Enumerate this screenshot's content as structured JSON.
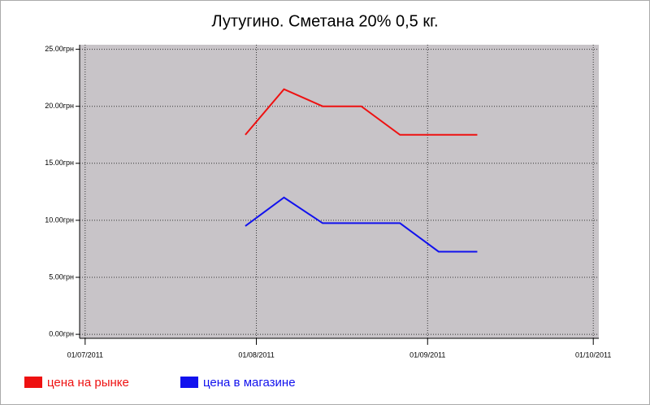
{
  "chart_data": {
    "type": "line",
    "title": "Лутугино. Сметана 20%  0,5 кг.",
    "x": [
      "2011-07-30",
      "2011-08-06",
      "2011-08-13",
      "2011-08-20",
      "2011-08-27",
      "2011-09-03",
      "2011-09-10"
    ],
    "series": [
      {
        "name": "цена на рынке",
        "color": "#ee1111",
        "values": [
          17.5,
          21.5,
          20,
          20,
          17.5,
          17.5,
          17.5
        ]
      },
      {
        "name": "цена в магазине",
        "color": "#1111ee",
        "values": [
          9.5,
          12,
          9.75,
          9.75,
          9.75,
          7.25,
          7.25
        ]
      }
    ],
    "xlim": [
      "2011-06-30",
      "2011-10-02"
    ],
    "xticks": [
      {
        "value": "2011-07-01",
        "label": "01/07/2011"
      },
      {
        "value": "2011-08-01",
        "label": "01/08/2011"
      },
      {
        "value": "2011-09-01",
        "label": "01/09/2011"
      },
      {
        "value": "2011-10-01",
        "label": "01/10/2011"
      }
    ],
    "ylim": [
      -0.35,
      25.4
    ],
    "yticks": [
      {
        "value": 0,
        "label": "0.00грн"
      },
      {
        "value": 5,
        "label": "5.00грн"
      },
      {
        "value": 10,
        "label": "10.00грн"
      },
      {
        "value": 15,
        "label": "15.00грн"
      },
      {
        "value": 20,
        "label": "20.00грн"
      },
      {
        "value": 25,
        "label": "25.00грн"
      }
    ],
    "grid": true
  }
}
